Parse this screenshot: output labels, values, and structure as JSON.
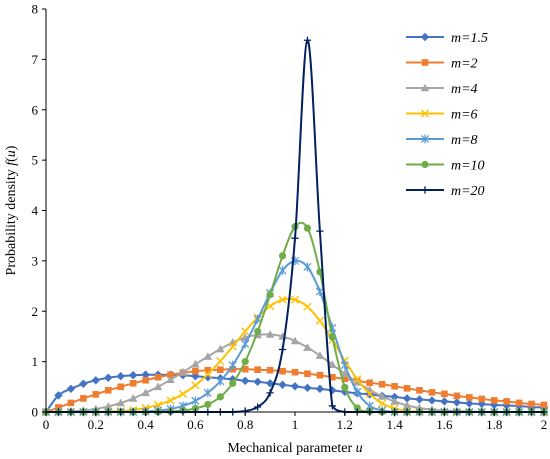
{
  "chart_data": {
    "type": "line",
    "title": "",
    "xlabel": {
      "text": "Mechanical parameter ",
      "var": "u"
    },
    "ylabel": {
      "text": "Probability density ",
      "var": "f",
      "open": "(",
      "arg": "u",
      "close": ")"
    },
    "xlim": [
      0,
      2
    ],
    "ylim": [
      0,
      8
    ],
    "xticks": [
      "0",
      "0.2",
      "0.4",
      "0.6",
      "0.8",
      "1",
      "1.2",
      "1.4",
      "1.6",
      "1.8",
      "2"
    ],
    "yticks": [
      "0",
      "1",
      "2",
      "3",
      "4",
      "5",
      "6",
      "7",
      "8"
    ],
    "grid": false,
    "legend_position": "top-right",
    "series": [
      {
        "name": "m=1.5",
        "color": "#4472C4",
        "marker": "diamond",
        "x": [
          0,
          0.05,
          0.1,
          0.15,
          0.2,
          0.25,
          0.3,
          0.35,
          0.4,
          0.45,
          0.5,
          0.55,
          0.6,
          0.65,
          0.7,
          0.75,
          0.8,
          0.85,
          0.9,
          0.95,
          1,
          1.05,
          1.1,
          1.15,
          1.2,
          1.25,
          1.3,
          1.35,
          1.4,
          1.45,
          1.5,
          1.55,
          1.6,
          1.65,
          1.7,
          1.75,
          1.8,
          1.85,
          1.9,
          1.95,
          2
        ],
        "y": [
          0,
          0.33,
          0.46,
          0.56,
          0.63,
          0.68,
          0.71,
          0.73,
          0.74,
          0.74,
          0.74,
          0.73,
          0.71,
          0.69,
          0.67,
          0.65,
          0.62,
          0.6,
          0.57,
          0.54,
          0.51,
          0.48,
          0.46,
          0.43,
          0.4,
          0.37,
          0.35,
          0.32,
          0.3,
          0.27,
          0.25,
          0.23,
          0.21,
          0.19,
          0.17,
          0.16,
          0.14,
          0.13,
          0.12,
          0.1,
          0.09
        ]
      },
      {
        "name": "m=2",
        "color": "#ED7D31",
        "marker": "square",
        "x": [
          0,
          0.05,
          0.1,
          0.15,
          0.2,
          0.25,
          0.3,
          0.35,
          0.4,
          0.45,
          0.5,
          0.55,
          0.6,
          0.65,
          0.7,
          0.75,
          0.8,
          0.85,
          0.9,
          0.95,
          1,
          1.05,
          1.1,
          1.15,
          1.2,
          1.25,
          1.3,
          1.35,
          1.4,
          1.45,
          1.5,
          1.55,
          1.6,
          1.65,
          1.7,
          1.75,
          1.8,
          1.85,
          1.9,
          1.95,
          2
        ],
        "y": [
          0,
          0.09,
          0.18,
          0.27,
          0.35,
          0.43,
          0.5,
          0.57,
          0.63,
          0.69,
          0.74,
          0.78,
          0.81,
          0.83,
          0.84,
          0.85,
          0.85,
          0.84,
          0.83,
          0.81,
          0.79,
          0.76,
          0.73,
          0.69,
          0.66,
          0.62,
          0.58,
          0.55,
          0.51,
          0.47,
          0.43,
          0.39,
          0.36,
          0.32,
          0.29,
          0.26,
          0.23,
          0.21,
          0.18,
          0.16,
          0.14
        ]
      },
      {
        "name": "m=4",
        "color": "#A5A5A5",
        "marker": "triangle",
        "x": [
          0,
          0.05,
          0.1,
          0.15,
          0.2,
          0.25,
          0.3,
          0.35,
          0.4,
          0.45,
          0.5,
          0.55,
          0.6,
          0.65,
          0.7,
          0.75,
          0.8,
          0.85,
          0.9,
          0.95,
          1,
          1.05,
          1.1,
          1.15,
          1.2,
          1.25,
          1.3,
          1.35,
          1.4,
          1.45,
          1.5,
          1.55,
          1.6,
          1.65,
          1.7,
          1.75,
          1.8,
          1.85,
          1.9,
          1.95,
          2
        ],
        "y": [
          0,
          0,
          0.01,
          0.03,
          0.06,
          0.11,
          0.18,
          0.27,
          0.38,
          0.5,
          0.64,
          0.79,
          0.95,
          1.1,
          1.25,
          1.38,
          1.48,
          1.53,
          1.54,
          1.5,
          1.41,
          1.28,
          1.12,
          0.94,
          0.76,
          0.59,
          0.44,
          0.31,
          0.21,
          0.13,
          0.08,
          0.05,
          0.03,
          0.02,
          0.01,
          0,
          0,
          0,
          0,
          0,
          0
        ]
      },
      {
        "name": "m=6",
        "color": "#FFC000",
        "marker": "x",
        "x": [
          0,
          0.05,
          0.1,
          0.15,
          0.2,
          0.25,
          0.3,
          0.35,
          0.4,
          0.45,
          0.5,
          0.55,
          0.6,
          0.65,
          0.7,
          0.75,
          0.8,
          0.85,
          0.9,
          0.95,
          1,
          1.05,
          1.1,
          1.15,
          1.2,
          1.25,
          1.3,
          1.35,
          1.4,
          1.45,
          1.5,
          1.55,
          1.6,
          1.65,
          1.7,
          1.75,
          1.8,
          1.85,
          1.9,
          1.95,
          2
        ],
        "y": [
          0,
          0,
          0,
          0,
          0,
          0.01,
          0.02,
          0.04,
          0.08,
          0.14,
          0.23,
          0.36,
          0.53,
          0.75,
          1.01,
          1.3,
          1.6,
          1.88,
          2.1,
          2.23,
          2.23,
          2.09,
          1.81,
          1.43,
          1.02,
          0.65,
          0.36,
          0.17,
          0.07,
          0.02,
          0.01,
          0,
          0,
          0,
          0,
          0,
          0,
          0,
          0,
          0,
          0
        ]
      },
      {
        "name": "m=8",
        "color": "#5B9BD5",
        "marker": "star",
        "x": [
          0,
          0.05,
          0.1,
          0.15,
          0.2,
          0.25,
          0.3,
          0.35,
          0.4,
          0.45,
          0.5,
          0.55,
          0.6,
          0.65,
          0.7,
          0.75,
          0.8,
          0.85,
          0.9,
          0.95,
          1,
          1.05,
          1.1,
          1.15,
          1.2,
          1.25,
          1.3,
          1.35,
          1.4,
          1.45,
          1.5,
          1.55,
          1.6,
          1.65,
          1.7,
          1.75,
          1.8,
          1.85,
          1.9,
          1.95,
          2
        ],
        "y": [
          0,
          0,
          0,
          0,
          0,
          0,
          0,
          0,
          0.01,
          0.03,
          0.06,
          0.12,
          0.22,
          0.38,
          0.61,
          0.93,
          1.35,
          1.84,
          2.36,
          2.81,
          3.0,
          2.88,
          2.39,
          1.67,
          0.93,
          0.4,
          0.12,
          0.03,
          0,
          0,
          0,
          0,
          0,
          0,
          0,
          0,
          0,
          0,
          0,
          0,
          0
        ]
      },
      {
        "name": "m=10",
        "color": "#70AD47",
        "marker": "circle",
        "x": [
          0,
          0.05,
          0.1,
          0.15,
          0.2,
          0.25,
          0.3,
          0.35,
          0.4,
          0.45,
          0.5,
          0.55,
          0.6,
          0.65,
          0.7,
          0.75,
          0.8,
          0.85,
          0.9,
          0.95,
          1,
          1.05,
          1.1,
          1.15,
          1.2,
          1.25,
          1.3,
          1.35,
          1.4,
          1.45,
          1.5,
          1.55,
          1.6,
          1.65,
          1.7,
          1.75,
          1.8,
          1.85,
          1.9,
          1.95,
          2
        ],
        "y": [
          0,
          0,
          0,
          0,
          0,
          0,
          0,
          0,
          0,
          0,
          0.01,
          0.03,
          0.07,
          0.15,
          0.3,
          0.57,
          1.0,
          1.6,
          2.33,
          3.1,
          3.68,
          3.65,
          2.78,
          1.49,
          0.49,
          0.08,
          0.01,
          0,
          0,
          0,
          0,
          0,
          0,
          0,
          0,
          0,
          0,
          0,
          0,
          0,
          0
        ]
      },
      {
        "name": "m=20",
        "color": "#002060",
        "marker": "plus",
        "x": [
          0,
          0.05,
          0.1,
          0.15,
          0.2,
          0.25,
          0.3,
          0.35,
          0.4,
          0.45,
          0.5,
          0.55,
          0.6,
          0.65,
          0.7,
          0.75,
          0.8,
          0.85,
          0.9,
          0.95,
          1,
          1.05,
          1.1,
          1.15,
          1.2,
          1.25,
          1.3,
          1.35,
          1.4,
          1.45,
          1.5,
          1.55,
          1.6,
          1.65,
          1.7,
          1.75,
          1.8,
          1.85,
          1.9,
          1.95,
          2
        ],
        "y": [
          0,
          0,
          0,
          0,
          0,
          0,
          0,
          0,
          0,
          0,
          0,
          0,
          0,
          0,
          0,
          0,
          0.02,
          0.1,
          0.38,
          1.24,
          3.45,
          7.38,
          3.59,
          0.12,
          0,
          0,
          0,
          0,
          0,
          0,
          0,
          0,
          0,
          0,
          0,
          0,
          0,
          0,
          0,
          0,
          0
        ]
      }
    ]
  }
}
